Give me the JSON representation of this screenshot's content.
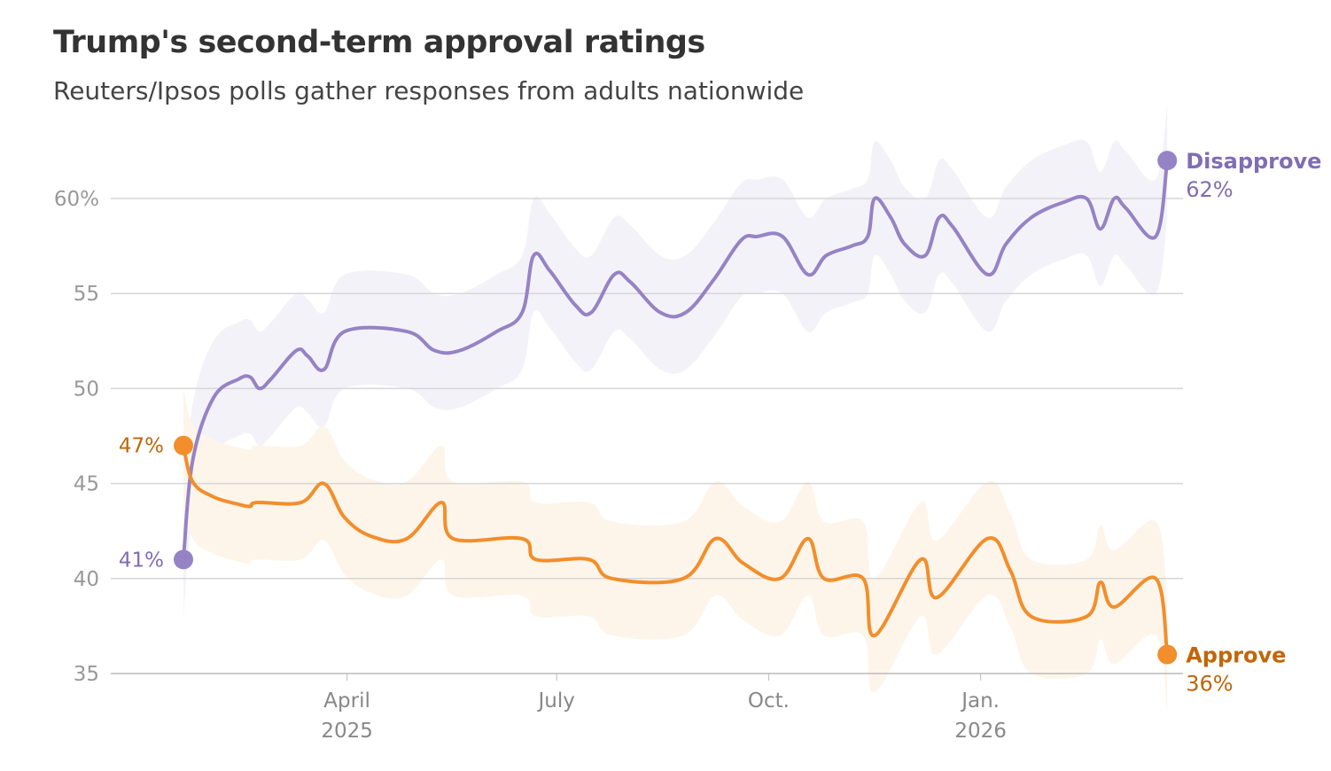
{
  "chart_data": {
    "type": "line",
    "title": "Trump's second-term approval ratings",
    "subtitle": "Reuters/Ipsos polls gather responses from adults nationwide",
    "x_unit": "days since 2025-01-20",
    "ylim": [
      35,
      62
    ],
    "yticks": [
      {
        "v": 60,
        "label": "60%"
      },
      {
        "v": 55,
        "label": "55"
      },
      {
        "v": 50,
        "label": "50"
      },
      {
        "v": 45,
        "label": "45"
      },
      {
        "v": 40,
        "label": "40"
      },
      {
        "v": 35,
        "label": "35"
      }
    ],
    "xticks": [
      {
        "d": 71,
        "label": "April",
        "sub": "2025"
      },
      {
        "d": 162,
        "label": "July",
        "sub": ""
      },
      {
        "d": 254,
        "label": "Oct.",
        "sub": ""
      },
      {
        "d": 346,
        "label": "Jan.",
        "sub": "2026"
      }
    ],
    "grid": true,
    "band_margin": 3,
    "series": [
      {
        "name": "Disapprove",
        "color": "#9583c5",
        "band_color": "#f4f2f9",
        "label_color": "#7f6db5",
        "start_label": "41%",
        "end_label": "62%",
        "x": [
          0,
          4,
          13,
          24,
          29,
          33,
          38,
          49,
          54,
          61,
          70,
          97,
          109,
          120,
          136,
          147,
          152,
          159,
          170,
          177,
          187,
          194,
          207,
          218,
          230,
          242,
          249,
          260,
          271,
          279,
          290,
          297,
          300,
          307,
          313,
          322,
          328,
          334,
          349,
          357,
          368,
          382,
          392,
          398,
          404,
          409,
          422,
          427
        ],
        "y": [
          41,
          46.2,
          49.5,
          50.5,
          50.6,
          50,
          50.5,
          52,
          51.7,
          51,
          53,
          53,
          52,
          52,
          53,
          54,
          57,
          56.2,
          54.4,
          54,
          56,
          55.6,
          54,
          54,
          55.7,
          57.8,
          58,
          58,
          56,
          57,
          57.5,
          58,
          60,
          59,
          57.6,
          57,
          59,
          58.5,
          56,
          57.6,
          59,
          59.8,
          60,
          58.4,
          60,
          59.5,
          58,
          62
        ]
      },
      {
        "name": "Approve",
        "color": "#f28e2b",
        "band_color": "#fdf5ea",
        "label_color": "#c0660a",
        "start_label": "47%",
        "end_label": "36%",
        "x": [
          0,
          4,
          13,
          24,
          29,
          32,
          51,
          61,
          70,
          82,
          97,
          112,
          117,
          147,
          153,
          176,
          186,
          217,
          231,
          243,
          259,
          271,
          278,
          295,
          300,
          320,
          327,
          349,
          359,
          368,
          392,
          398,
          404,
          422,
          427
        ],
        "y": [
          47,
          45.1,
          44.3,
          43.9,
          43.8,
          44,
          44,
          45,
          43.2,
          42.2,
          42.1,
          44,
          42.1,
          42.1,
          41,
          41,
          40,
          40,
          42.1,
          40.8,
          40,
          42.1,
          40,
          40,
          37,
          41,
          39,
          42.1,
          40.4,
          38,
          38,
          39.8,
          38.5,
          40,
          36
        ]
      }
    ]
  }
}
